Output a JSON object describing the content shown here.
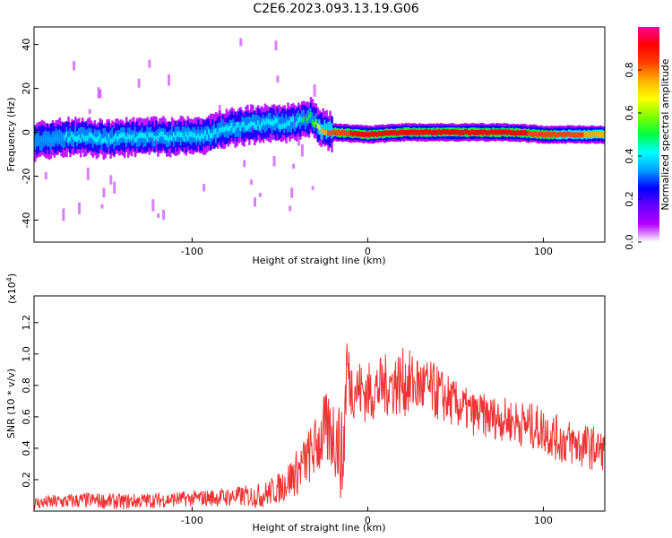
{
  "title": "C2E6.2023.093.13.19.G06",
  "colors": {
    "signal": "#ee3333",
    "colorbar": [
      "#ffffff",
      "#b400ff",
      "#6a00ff",
      "#0000ff",
      "#00a0ff",
      "#00ffff",
      "#00ff40",
      "#80ff00",
      "#ffff00",
      "#ffb000",
      "#ff4000",
      "#ff0000",
      "#ff00a0"
    ]
  },
  "chart_data": [
    {
      "type": "heatmap",
      "xlabel": "Height of straight line (km)",
      "ylabel": "Frequency (Hz)",
      "xlim": [
        -190,
        135
      ],
      "ylim": [
        -50,
        48
      ],
      "xticks": [
        -100,
        0,
        100
      ],
      "xtick_labels": [
        "-100",
        "0",
        "100"
      ],
      "yticks": [
        -40,
        -20,
        0,
        20,
        40
      ],
      "ytick_labels": [
        "-40",
        "-20",
        "0",
        "20",
        "40"
      ],
      "colorbar": {
        "label": "Normalized spectral amplitude",
        "range": [
          0,
          1
        ],
        "ticks": [
          0.0,
          0.2,
          0.4,
          0.6,
          0.8
        ],
        "tick_labels": [
          "0.0",
          "0.2",
          "0.4",
          "0.6",
          "0.8"
        ]
      },
      "ridge": {
        "x": [
          -190,
          -170,
          -150,
          -130,
          -110,
          -90,
          -80,
          -70,
          -60,
          -50,
          -40,
          -33,
          -28,
          -20,
          0,
          20,
          40,
          60,
          80,
          100,
          120,
          135
        ],
        "freq": [
          -4,
          -2,
          -3,
          -2,
          -2,
          -1,
          2,
          3,
          4,
          4,
          5,
          7,
          2,
          0,
          -1,
          0,
          0,
          0,
          0,
          -1,
          -1,
          -1
        ],
        "amplitude": [
          0.35,
          0.38,
          0.4,
          0.4,
          0.42,
          0.45,
          0.45,
          0.45,
          0.42,
          0.42,
          0.45,
          0.5,
          0.7,
          0.85,
          0.9,
          0.92,
          0.95,
          0.92,
          0.9,
          0.85,
          0.8,
          0.75
        ]
      }
    },
    {
      "type": "line",
      "xlabel": "Height of straight line (km)",
      "ylabel": "SNR (10 * v/v)",
      "y_multiplier": "(x10",
      "y_multiplier_exp": "4",
      "y_multiplier_close": ")",
      "xlim": [
        -190,
        135
      ],
      "ylim": [
        0,
        1.37
      ],
      "xticks": [
        -100,
        0,
        100
      ],
      "xtick_labels": [
        "-100",
        "0",
        "100"
      ],
      "yticks": [
        0.2,
        0.4,
        0.6,
        0.8,
        1.0,
        1.2
      ],
      "ytick_labels": [
        "0.2",
        "0.4",
        "0.6",
        "0.8",
        "1.0",
        "1.2"
      ],
      "series": [
        {
          "x": [
            -190,
            -175,
            -160,
            -140,
            -120,
            -100,
            -80,
            -60,
            -50,
            -40,
            -30,
            -25,
            -20,
            -17,
            -14,
            -12,
            -10,
            0,
            10,
            20,
            30,
            40,
            50,
            60,
            70,
            80,
            90,
            100,
            110,
            120,
            130,
            135
          ],
          "y": [
            0.05,
            0.06,
            0.07,
            0.06,
            0.07,
            0.08,
            0.09,
            0.1,
            0.15,
            0.25,
            0.4,
            0.5,
            0.5,
            0.45,
            0.3,
            0.95,
            0.8,
            0.75,
            0.8,
            0.82,
            0.8,
            0.75,
            0.68,
            0.62,
            0.6,
            0.58,
            0.55,
            0.52,
            0.45,
            0.42,
            0.4,
            0.38
          ],
          "spread": [
            0.04,
            0.05,
            0.05,
            0.05,
            0.05,
            0.05,
            0.06,
            0.08,
            0.1,
            0.15,
            0.2,
            0.25,
            0.25,
            0.3,
            0.3,
            0.3,
            0.2,
            0.2,
            0.2,
            0.22,
            0.2,
            0.18,
            0.15,
            0.14,
            0.14,
            0.14,
            0.15,
            0.15,
            0.15,
            0.15,
            0.14,
            0.12
          ]
        }
      ]
    }
  ]
}
